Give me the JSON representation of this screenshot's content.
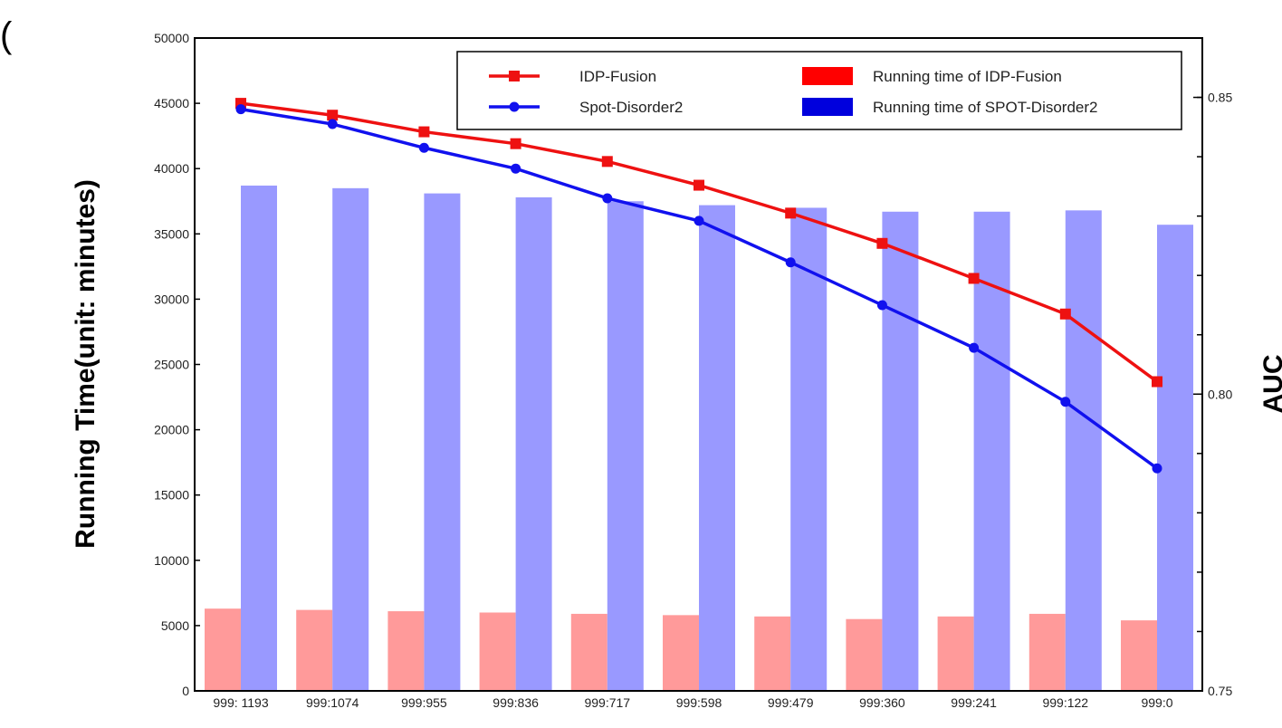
{
  "page": {
    "fragment": "("
  },
  "chart_data": {
    "type": "bar",
    "categories": [
      "999: 1193",
      "999:1074",
      "999:955",
      "999:836",
      "999:717",
      "999:598",
      "999:479",
      "999:360",
      "999:241",
      "999:122",
      "999:0"
    ],
    "ylabel": "Running Time(unit: minutes)",
    "y2label": "AUC",
    "ylim": [
      0,
      50000
    ],
    "y2lim": [
      0.75,
      0.86
    ],
    "yticks": [
      "0",
      "5000",
      "10000",
      "15000",
      "20000",
      "25000",
      "30000",
      "35000",
      "40000",
      "45000",
      "50000"
    ],
    "y2ticks": [
      "0.75",
      "0.80",
      "0.85"
    ],
    "bar_series": [
      {
        "name": "Running time of IDP-Fusion",
        "axis": "left",
        "color": "#ff9a9a",
        "legend_color": "#ff0000",
        "values": [
          6300,
          6200,
          6100,
          6000,
          5900,
          5800,
          5700,
          5500,
          5700,
          5900,
          5400
        ]
      },
      {
        "name": "Running time of SPOT-Disorder2",
        "axis": "left",
        "color": "#9999ff",
        "legend_color": "#0000dd",
        "values": [
          38700,
          38500,
          38100,
          37800,
          37500,
          37200,
          37000,
          36700,
          36700,
          36800,
          35700
        ]
      }
    ],
    "line_series": [
      {
        "name": "IDP-Fusion",
        "axis": "right",
        "color": "#ee1111",
        "marker": "square",
        "values": [
          0.849,
          0.847,
          0.8442,
          0.8422,
          0.8392,
          0.8352,
          0.8305,
          0.8254,
          0.8195,
          0.8135,
          0.8021
        ]
      },
      {
        "name": "Spot-Disorder2",
        "axis": "right",
        "color": "#1111ee",
        "marker": "circle",
        "values": [
          0.848,
          0.8455,
          0.8415,
          0.838,
          0.833,
          0.8292,
          0.8222,
          0.815,
          0.8078,
          0.7987,
          0.7875
        ]
      }
    ],
    "legend_position": "top-right",
    "grid": false
  }
}
